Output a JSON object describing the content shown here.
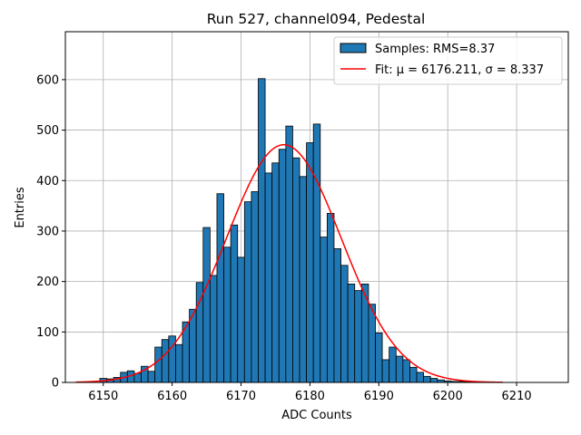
{
  "chart_data": {
    "type": "bar",
    "title": "Run 527, channel094, Pedestal",
    "xlabel": "ADC Counts",
    "ylabel": "Entries",
    "xlim": [
      6144.5,
      6217.5
    ],
    "ylim": [
      0,
      695
    ],
    "xticks": [
      6150,
      6160,
      6170,
      6180,
      6190,
      6200,
      6210
    ],
    "yticks": [
      0,
      100,
      200,
      300,
      400,
      500,
      600
    ],
    "grid": true,
    "bar_color": "#1f77b4",
    "fit_color": "#ff0000",
    "bins": [
      6150,
      6151,
      6152,
      6153,
      6154,
      6155,
      6156,
      6157,
      6158,
      6159,
      6160,
      6161,
      6162,
      6163,
      6164,
      6165,
      6166,
      6167,
      6168,
      6169,
      6170,
      6171,
      6172,
      6173,
      6174,
      6175,
      6176,
      6177,
      6178,
      6179,
      6180,
      6181,
      6182,
      6183,
      6184,
      6185,
      6186,
      6187,
      6188,
      6189,
      6190,
      6191,
      6192,
      6193,
      6194,
      6195,
      6196,
      6197,
      6198,
      6199,
      6200,
      6201,
      6202,
      6203,
      6204
    ],
    "values": [
      8,
      7,
      10,
      20,
      23,
      18,
      32,
      22,
      70,
      85,
      92,
      75,
      120,
      145,
      198,
      307,
      212,
      374,
      268,
      312,
      248,
      358,
      378,
      602,
      415,
      435,
      462,
      508,
      445,
      408,
      475,
      512,
      288,
      335,
      265,
      232,
      195,
      182,
      195,
      155,
      98,
      45,
      70,
      52,
      45,
      30,
      20,
      12,
      8,
      5,
      3,
      2,
      2,
      1,
      1
    ],
    "fit": {
      "mu": 6176.211,
      "sigma": 8.337,
      "amplitude": 471,
      "x_range": [
        6146,
        6208
      ]
    },
    "legend": {
      "position": "top-right",
      "samples_label": "Samples: RMS=8.37",
      "fit_label": "Fit: μ = 6176.211, σ = 8.337"
    }
  }
}
